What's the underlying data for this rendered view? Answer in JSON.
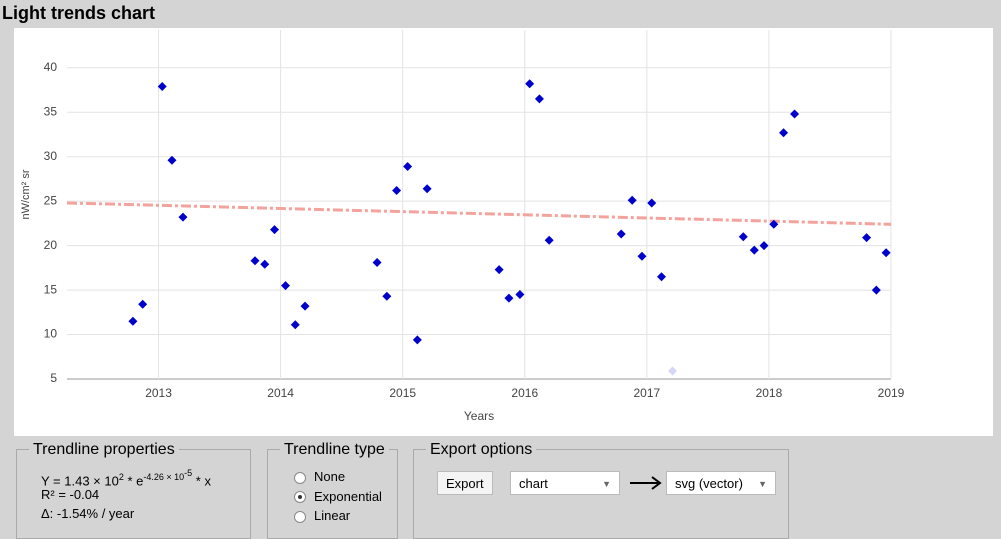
{
  "title": "Light trends chart",
  "chart_data": {
    "type": "scatter",
    "x_label": "Years",
    "y_label": "nW/cm² sr",
    "xlim": [
      2012.25,
      2019
    ],
    "ylim": [
      5,
      42
    ],
    "xticks": [
      2013,
      2014,
      2015,
      2016,
      2017,
      2018,
      2019
    ],
    "yticks": [
      5,
      10,
      15,
      20,
      25,
      30,
      35,
      40
    ],
    "grid": true,
    "series": [
      {
        "color": "#0000cc",
        "x": [
          2012.79,
          2012.87,
          2013.03,
          2013.11,
          2013.2,
          2013.79,
          2013.87,
          2013.95,
          2014.04,
          2014.12,
          2014.2,
          2014.79,
          2014.87,
          2014.95,
          2015.04,
          2015.12,
          2015.2,
          2015.79,
          2015.87,
          2015.96,
          2016.04,
          2016.12,
          2016.2,
          2016.79,
          2016.88,
          2016.96,
          2017.04,
          2017.12,
          2017.79,
          2017.88,
          2017.96,
          2018.04,
          2018.12,
          2018.21,
          2018.8,
          2018.88,
          2018.96
        ],
        "values": [
          11.5,
          13.4,
          37.9,
          29.6,
          23.2,
          18.3,
          17.9,
          21.8,
          15.5,
          11.1,
          13.2,
          18.1,
          14.3,
          26.2,
          28.9,
          9.4,
          26.4,
          17.3,
          14.1,
          14.5,
          38.2,
          36.5,
          20.6,
          21.3,
          25.1,
          18.8,
          24.8,
          16.5,
          21,
          19.5,
          20,
          22.4,
          32.7,
          34.8,
          20.9,
          15,
          19.2
        ]
      },
      {
        "color": "#d6d6f5",
        "x": [
          2017.21
        ],
        "values": [
          5.9
        ]
      }
    ],
    "trendline": {
      "color": "#f4a29c",
      "x": [
        2012.25,
        2019
      ],
      "values": [
        24.8,
        22.4
      ]
    }
  },
  "trendline_properties": {
    "legend": "Trendline properties",
    "equation": {
      "base": "Y = 1.43 × 10",
      "exp1": "2",
      "mid": " * e",
      "exp2": "-4.26 × 10",
      "exp3": "-5",
      "tail": " * x"
    },
    "r2": "R² = -0.04",
    "delta": "Δ: -1.54% / year"
  },
  "trendline_type": {
    "legend": "Trendline type",
    "options": [
      "None",
      "Exponential",
      "Linear"
    ],
    "selected": 1
  },
  "export_options": {
    "legend": "Export options",
    "button": "Export",
    "source": "chart",
    "format": "svg (vector)"
  }
}
